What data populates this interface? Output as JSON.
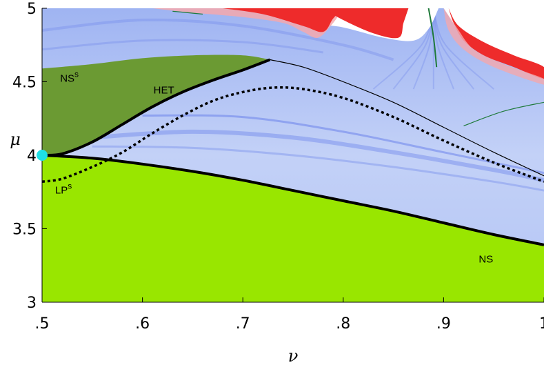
{
  "chart_data": {
    "type": "line",
    "title": "",
    "xlabel": "ν",
    "ylabel": "μ",
    "xlim": [
      0.5,
      1.0
    ],
    "ylim": [
      3.0,
      5.0
    ],
    "xticks": [
      {
        "value": 0.5,
        "label": ".5"
      },
      {
        "value": 0.6,
        "label": ".6"
      },
      {
        "value": 0.7,
        "label": ".7"
      },
      {
        "value": 0.8,
        "label": ".8"
      },
      {
        "value": 0.9,
        "label": ".9"
      },
      {
        "value": 1.0,
        "label": "1"
      }
    ],
    "yticks": [
      {
        "value": 3.0,
        "label": "3"
      },
      {
        "value": 3.5,
        "label": "3.5"
      },
      {
        "value": 4.0,
        "label": "4"
      },
      {
        "value": 4.5,
        "label": "4.5"
      },
      {
        "value": 5.0,
        "label": "5"
      }
    ],
    "grid": false,
    "colors": {
      "background_blue": "#bcccf6",
      "deep_blue": "#5a73e8",
      "ns_region": "#99e600",
      "nss_region": "#6b9a33",
      "chaos_red": "#ee2b2b",
      "chaos_pink": "#f4a8ad",
      "curve": "#000000",
      "point": "#1fe0e6"
    },
    "regions": [
      {
        "name": "NS",
        "color": "#99e600"
      },
      {
        "name": "NSs",
        "color": "#6b9a33"
      }
    ],
    "series": [
      {
        "name": "NS",
        "style": "thick-solid",
        "x": [
          0.5,
          0.55,
          0.6,
          0.65,
          0.7,
          0.75,
          0.8,
          0.85,
          0.9,
          0.95,
          1.0
        ],
        "y": [
          4.0,
          3.98,
          3.94,
          3.89,
          3.83,
          3.76,
          3.69,
          3.62,
          3.54,
          3.46,
          3.39
        ]
      },
      {
        "name": "HET",
        "style": "thick-solid",
        "x": [
          0.5,
          0.52,
          0.55,
          0.58,
          0.61,
          0.64,
          0.67,
          0.7,
          0.727
        ],
        "y": [
          4.0,
          4.01,
          4.09,
          4.21,
          4.33,
          4.43,
          4.51,
          4.58,
          4.65
        ]
      },
      {
        "name": "NSs boundary",
        "style": "thin-solid",
        "x": [
          0.5,
          0.55,
          0.6,
          0.65,
          0.7,
          0.727,
          0.76,
          0.8,
          0.85,
          0.9,
          0.95,
          1.0
        ],
        "y": [
          4.59,
          4.62,
          4.66,
          4.68,
          4.68,
          4.65,
          4.6,
          4.5,
          4.36,
          4.19,
          4.02,
          3.86
        ]
      },
      {
        "name": "LPs",
        "style": "dotted",
        "x": [
          0.5,
          0.52,
          0.55,
          0.58,
          0.61,
          0.64,
          0.67,
          0.7,
          0.73,
          0.76,
          0.8,
          0.85,
          0.9,
          0.95,
          1.0
        ],
        "y": [
          3.82,
          3.84,
          3.92,
          4.02,
          4.15,
          4.27,
          4.37,
          4.43,
          4.46,
          4.45,
          4.39,
          4.26,
          4.1,
          3.95,
          3.82
        ]
      }
    ],
    "point": {
      "x": 0.5,
      "y": 4.0
    },
    "annotations": [
      {
        "id": "nss",
        "text": "NS",
        "sup": "s",
        "x": 0.518,
        "y": 4.5
      },
      {
        "id": "het",
        "text": "HET",
        "sup": "",
        "x": 0.611,
        "y": 4.42
      },
      {
        "id": "lps",
        "text": "LP",
        "sup": "s",
        "x": 0.513,
        "y": 3.74
      },
      {
        "id": "ns",
        "text": "NS",
        "sup": "",
        "x": 0.935,
        "y": 3.27
      }
    ]
  }
}
